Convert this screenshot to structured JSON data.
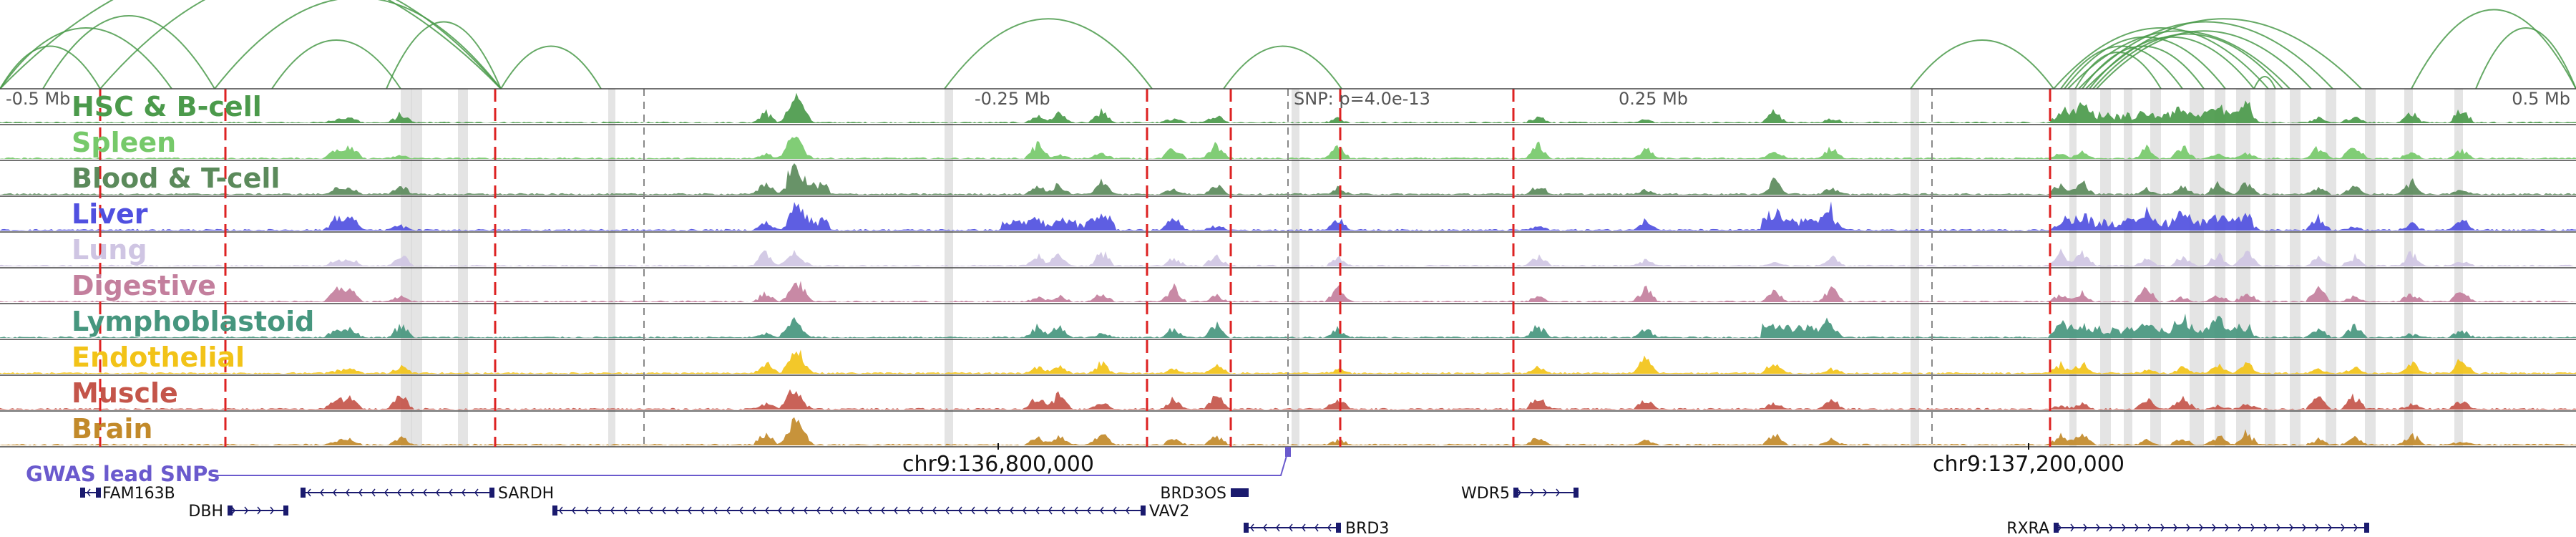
{
  "ruler": {
    "ticks": [
      {
        "label": "-0.5 Mb",
        "mb": -0.5
      },
      {
        "label": "-0.25 Mb",
        "mb": -0.25
      },
      {
        "label": "SNP: p=4.0e-13",
        "mb": 0.0
      },
      {
        "label": "0.25 Mb",
        "mb": 0.25
      },
      {
        "label": "0.5 Mb",
        "mb": 0.5
      }
    ]
  },
  "tracks": [
    {
      "name": "HSC & B-cell",
      "color": "#4b9a4b"
    },
    {
      "name": "Spleen",
      "color": "#76c96a"
    },
    {
      "name": "Blood & T-cell",
      "color": "#5b8a5b"
    },
    {
      "name": "Liver",
      "color": "#5050e0"
    },
    {
      "name": "Lung",
      "color": "#cfc5e3"
    },
    {
      "name": "Digestive",
      "color": "#c37f9d"
    },
    {
      "name": "Lymphoblastoid",
      "color": "#46967e"
    },
    {
      "name": "Endothelial",
      "color": "#f2c318"
    },
    {
      "name": "Muscle",
      "color": "#c4554a"
    },
    {
      "name": "Brain",
      "color": "#c28a2a"
    }
  ],
  "gwas": {
    "label": "GWAS lead SNPs",
    "color": "#6a5acd"
  },
  "coordinates": [
    {
      "label": "chr9:136,800,000",
      "position": 136800000
    },
    {
      "label": "chr9:137,200,000",
      "position": 137200000
    }
  ],
  "genes": [
    {
      "name": "FAM163B",
      "strand": "-"
    },
    {
      "name": "SARDH",
      "strand": "-"
    },
    {
      "name": "DBH",
      "strand": "+"
    },
    {
      "name": "VAV2",
      "strand": "-"
    },
    {
      "name": "BRD3OS",
      "strand": "+"
    },
    {
      "name": "WDR5",
      "strand": "+"
    },
    {
      "name": "BRD3",
      "strand": "-"
    },
    {
      "name": "RXRA",
      "strand": "+"
    }
  ],
  "colors": {
    "arc": "#4a9a4a",
    "red_dashed": "#dd2222",
    "gray_dashed": "#888888",
    "highlight": "#d9d9d9",
    "gene": "#1a1a6e"
  }
}
